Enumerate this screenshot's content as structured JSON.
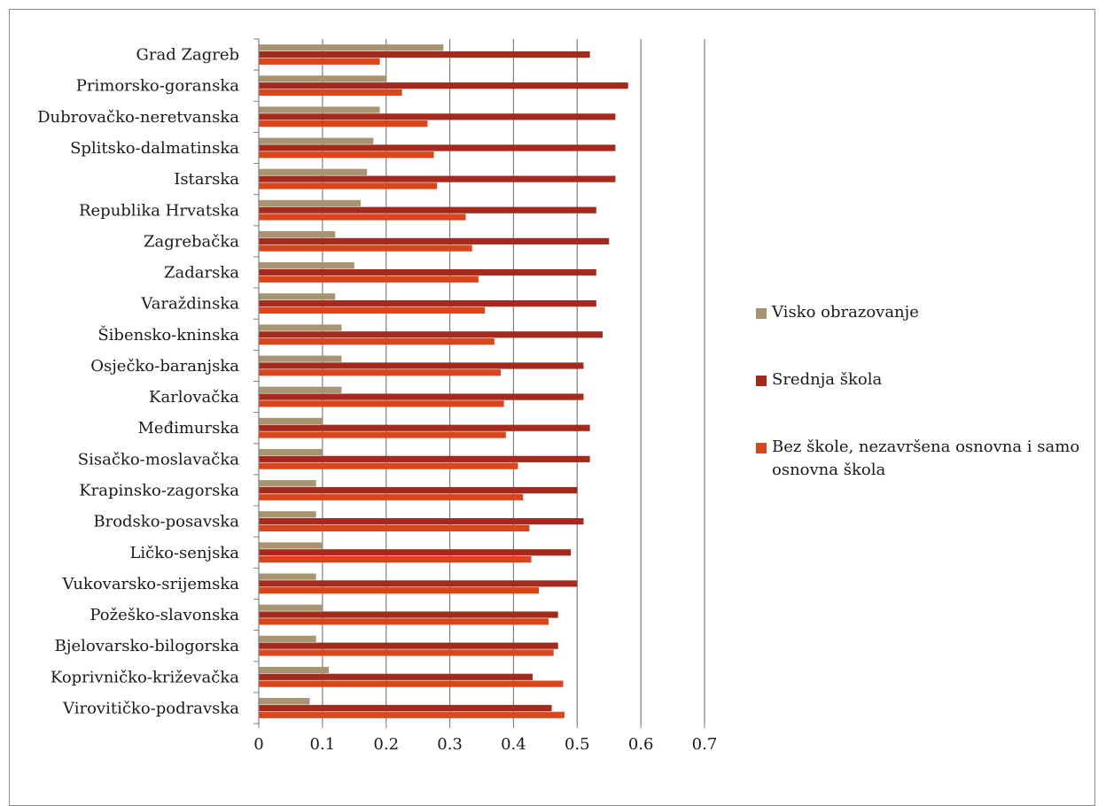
{
  "chart_data": {
    "type": "bar",
    "orientation": "horizontal",
    "title": "",
    "xlabel": "",
    "ylabel": "",
    "xlim": [
      0,
      0.7
    ],
    "x_ticks": [
      "0",
      "0.1",
      "0.2",
      "0.3",
      "0.4",
      "0.5",
      "0.6",
      "0.7"
    ],
    "grid": "vertical",
    "legend_position": "right",
    "categories": [
      "Grad Zagreb",
      "Primorsko-goranska",
      "Dubrovačko-neretvanska",
      "Splitsko-dalmatinska",
      "Istarska",
      "Republika Hrvatska",
      "Zagrebačka",
      "Zadarska",
      "Varaždinska",
      "Šibensko-kninska",
      "Osječko-baranjska",
      "Karlovačka",
      "Međimurska",
      "Sisačko-moslavačka",
      "Krapinsko-zagorska",
      "Brodsko-posavska",
      "Ličko-senjska",
      "Vukovarsko-srijemska",
      "Požeško-slavonska",
      "Bjelovarsko-bilogorska",
      "Koprivničko-križevačka",
      "Virovitičko-podravska"
    ],
    "series": [
      {
        "name": "Visko obrazovanje",
        "color": "#a89470",
        "values": [
          0.29,
          0.2,
          0.19,
          0.18,
          0.17,
          0.16,
          0.12,
          0.15,
          0.12,
          0.13,
          0.13,
          0.13,
          0.1,
          0.1,
          0.09,
          0.09,
          0.1,
          0.09,
          0.1,
          0.09,
          0.11,
          0.08
        ]
      },
      {
        "name": "Srednja škola",
        "color": "#a52a1e",
        "values": [
          0.52,
          0.58,
          0.56,
          0.56,
          0.56,
          0.53,
          0.55,
          0.53,
          0.53,
          0.54,
          0.51,
          0.51,
          0.52,
          0.52,
          0.5,
          0.51,
          0.49,
          0.5,
          0.47,
          0.47,
          0.43,
          0.46
        ]
      },
      {
        "name": "Bez škole, nezavršena osnovna i samo osnovna škola",
        "color": "#d9461c",
        "values": [
          0.19,
          0.225,
          0.265,
          0.275,
          0.28,
          0.325,
          0.335,
          0.345,
          0.355,
          0.37,
          0.38,
          0.385,
          0.388,
          0.407,
          0.415,
          0.425,
          0.428,
          0.44,
          0.455,
          0.463,
          0.478,
          0.48
        ]
      }
    ]
  }
}
